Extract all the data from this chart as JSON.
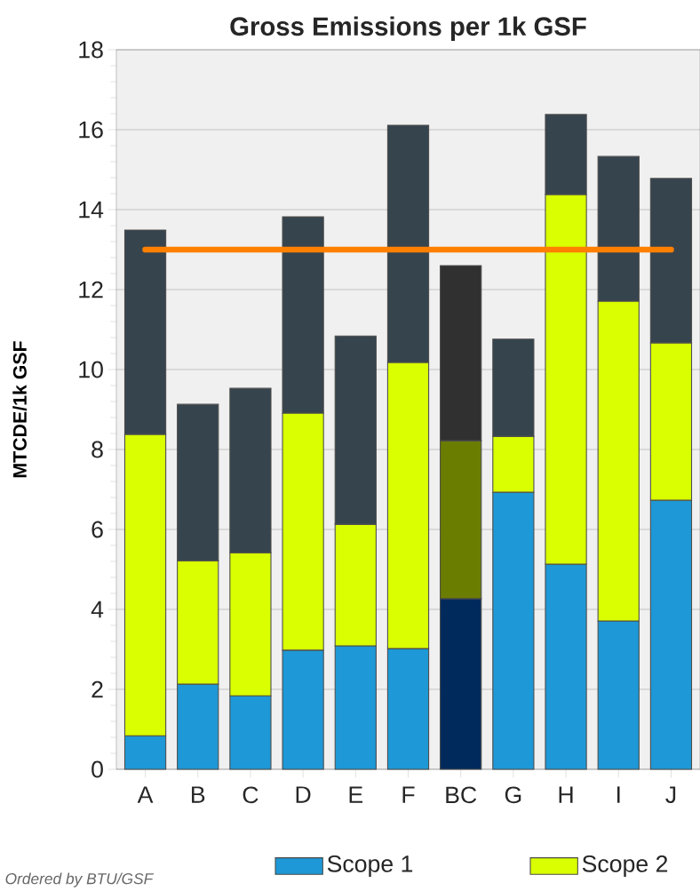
{
  "chart_data": {
    "type": "bar",
    "stacked": true,
    "title": "Gross Emissions per 1k GSF",
    "ylabel": "MTCDE/1k GSF",
    "categories": [
      "A",
      "B",
      "C",
      "D",
      "E",
      "F",
      "BC",
      "G",
      "H",
      "I",
      "J"
    ],
    "series": [
      {
        "name": "Scope 1",
        "color": "#1e98d6",
        "colors": [
          "#1e98d6",
          "#1e98d6",
          "#1e98d6",
          "#1e98d6",
          "#1e98d6",
          "#1e98d6",
          "#002a5c",
          "#1e98d6",
          "#1e98d6",
          "#1e98d6",
          "#1e98d6"
        ],
        "values": [
          0.84,
          2.13,
          1.84,
          2.98,
          3.09,
          3.02,
          4.27,
          6.93,
          5.13,
          3.71,
          6.73
        ]
      },
      {
        "name": "Scope 2",
        "color": "#d9ff00",
        "colors": [
          "#d9ff00",
          "#d9ff00",
          "#d9ff00",
          "#d9ff00",
          "#d9ff00",
          "#d9ff00",
          "#6b7d00",
          "#d9ff00",
          "#d9ff00",
          "#d9ff00",
          "#d9ff00"
        ],
        "values": [
          7.54,
          3.09,
          3.58,
          5.93,
          3.04,
          7.16,
          3.95,
          1.4,
          9.25,
          8.0,
          3.94
        ]
      },
      {
        "color": "#36444e",
        "colors": [
          "#36444e",
          "#36444e",
          "#36444e",
          "#36444e",
          "#36444e",
          "#36444e",
          "#303030",
          "#36444e",
          "#36444e",
          "#36444e",
          "#36444e"
        ],
        "values": [
          5.11,
          3.91,
          4.11,
          4.91,
          4.71,
          5.93,
          4.38,
          2.43,
          2.0,
          3.62,
          4.11
        ]
      }
    ],
    "ylim": [
      0,
      18
    ],
    "yticks": [
      0,
      2,
      4,
      6,
      8,
      10,
      12,
      14,
      16,
      18
    ],
    "grid": "y",
    "legend": "bottom",
    "ref_lines": [
      {
        "axis": "y",
        "value": 13,
        "color": "#ff7f00"
      }
    ],
    "annotations": [
      "Ordered by BTU/GSF"
    ]
  }
}
